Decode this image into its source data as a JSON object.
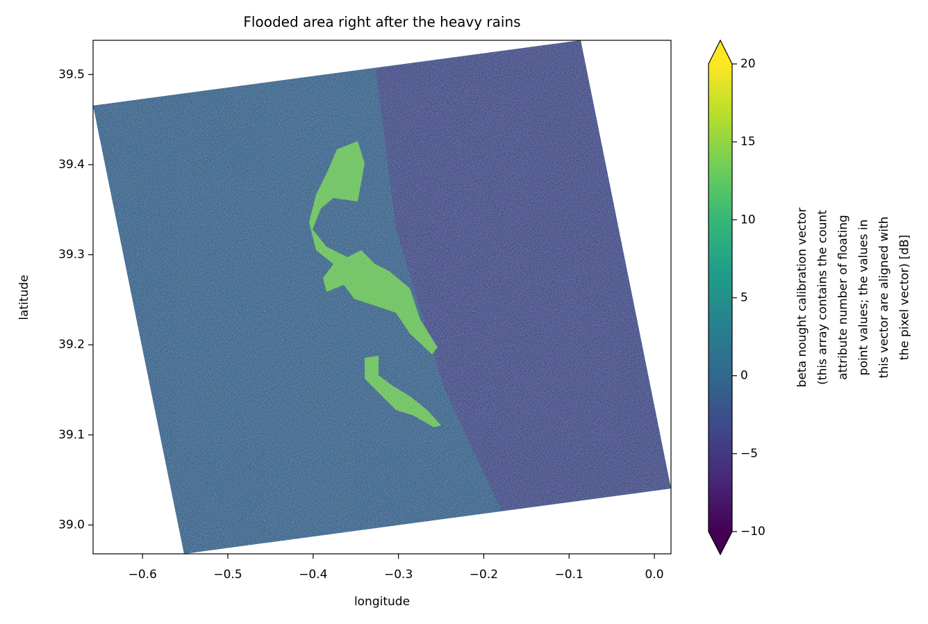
{
  "chart_data": {
    "type": "raster",
    "title": "Flooded area right after the heavy rains",
    "x_label": "longitude",
    "y_label": "latitude",
    "xlim": [
      -0.658,
      0.0195
    ],
    "ylim": [
      38.968,
      39.538
    ],
    "xticks": [
      {
        "value": -0.6,
        "label": "−0.6"
      },
      {
        "value": -0.5,
        "label": "−0.5"
      },
      {
        "value": -0.4,
        "label": "−0.4"
      },
      {
        "value": -0.3,
        "label": "−0.3"
      },
      {
        "value": -0.2,
        "label": "−0.2"
      },
      {
        "value": -0.1,
        "label": "−0.1"
      },
      {
        "value": 0,
        "label": "0.0"
      }
    ],
    "yticks": [
      {
        "value": 39,
        "label": "39.0"
      },
      39.1,
      39.2,
      39.3,
      39.4,
      39.5
    ],
    "clim": [
      -10,
      20
    ],
    "colorbar_ticks": [
      {
        "value": -10,
        "label": "−10"
      },
      {
        "value": -5,
        "label": "−5"
      },
      0,
      5,
      10,
      15,
      20
    ],
    "colorbar_label": [
      "beta nought calibration vector",
      "(this array contains the count",
      "attribute number of floating",
      "point values; the values in",
      "this vector are aligned with",
      "the pixel vector) [dB]"
    ],
    "colormap_colors": [
      "#440154",
      "#482878",
      "#3e4989",
      "#31688e",
      "#26828e",
      "#1f9e89",
      "#35b779",
      "#6ece58",
      "#b5de2b",
      "#fde725"
    ]
  }
}
